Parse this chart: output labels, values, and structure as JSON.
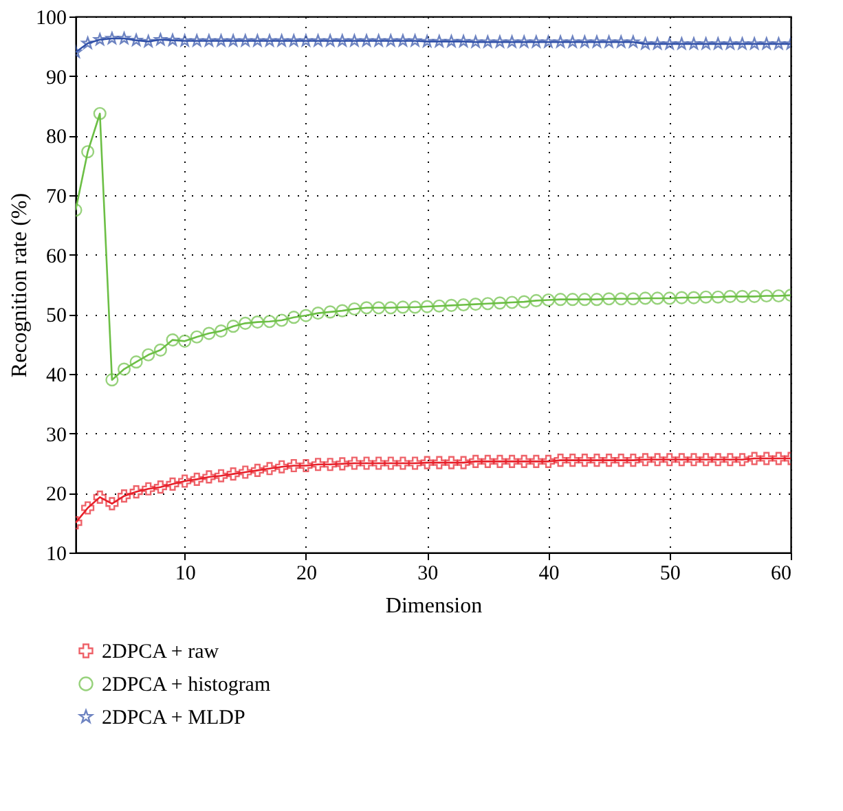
{
  "chart_data": {
    "type": "line",
    "xlabel": "Dimension",
    "ylabel": "Recognition rate (%)",
    "x": [
      1,
      2,
      3,
      4,
      5,
      6,
      7,
      8,
      9,
      10,
      11,
      12,
      13,
      14,
      15,
      16,
      17,
      18,
      19,
      20,
      21,
      22,
      23,
      24,
      25,
      26,
      27,
      28,
      29,
      30,
      31,
      32,
      33,
      34,
      35,
      36,
      37,
      38,
      39,
      40,
      41,
      42,
      43,
      44,
      45,
      46,
      47,
      48,
      49,
      50,
      51,
      52,
      53,
      54,
      55,
      56,
      57,
      58,
      59,
      60
    ],
    "series": [
      {
        "name": "2DPCA + raw",
        "color": "#e8202a",
        "marker": "cross",
        "values": [
          15,
          17.5,
          19.3,
          18.2,
          19.5,
          20.2,
          20.7,
          21,
          21.5,
          22,
          22.3,
          22.7,
          22.9,
          23.2,
          23.5,
          23.8,
          24.1,
          24.4,
          24.6,
          24.6,
          24.8,
          24.8,
          24.9,
          25,
          25,
          25,
          25,
          25,
          25,
          25.1,
          25.1,
          25.1,
          25.1,
          25.3,
          25.3,
          25.3,
          25.3,
          25.3,
          25.3,
          25.3,
          25.5,
          25.5,
          25.5,
          25.5,
          25.5,
          25.5,
          25.5,
          25.6,
          25.6,
          25.6,
          25.6,
          25.6,
          25.6,
          25.6,
          25.6,
          25.6,
          25.8,
          25.8,
          25.8,
          25.8
        ]
      },
      {
        "name": "2DPCA + histogram",
        "color": "#6cbf45",
        "marker": "circle",
        "values": [
          67.5,
          77.3,
          83.7,
          39,
          40.8,
          42,
          43.2,
          44,
          45.7,
          45.5,
          46.2,
          46.8,
          47.2,
          48,
          48.5,
          48.7,
          48.8,
          49,
          49.5,
          49.8,
          50.2,
          50.4,
          50.6,
          50.9,
          51.1,
          51.1,
          51.1,
          51.2,
          51.2,
          51.3,
          51.4,
          51.5,
          51.6,
          51.7,
          51.8,
          51.9,
          52,
          52.1,
          52.3,
          52.4,
          52.5,
          52.5,
          52.5,
          52.5,
          52.6,
          52.6,
          52.6,
          52.7,
          52.7,
          52.7,
          52.8,
          52.8,
          52.9,
          52.9,
          53,
          53,
          53,
          53.1,
          53.1,
          53.2
        ]
      },
      {
        "name": "2DPCA + MLDP",
        "color": "#3050a8",
        "marker": "star",
        "values": [
          94,
          95.5,
          96.1,
          96.3,
          96.3,
          96,
          95.8,
          96.1,
          96,
          95.9,
          95.9,
          95.9,
          95.9,
          95.9,
          95.9,
          95.9,
          95.9,
          95.9,
          95.9,
          95.9,
          95.9,
          95.9,
          95.9,
          95.9,
          95.9,
          95.9,
          95.9,
          95.9,
          95.9,
          95.8,
          95.8,
          95.8,
          95.8,
          95.7,
          95.7,
          95.7,
          95.7,
          95.7,
          95.7,
          95.7,
          95.7,
          95.7,
          95.7,
          95.7,
          95.7,
          95.7,
          95.7,
          95.4,
          95.4,
          95.4,
          95.4,
          95.4,
          95.4,
          95.4,
          95.4,
          95.4,
          95.4,
          95.4,
          95.4,
          95.4
        ]
      }
    ],
    "xlim": [
      1,
      60
    ],
    "xticks": [
      10,
      20,
      30,
      40,
      50,
      60
    ],
    "ylim": [
      10,
      100
    ],
    "yticks": [
      10,
      20,
      30,
      40,
      50,
      60,
      70,
      80,
      90,
      100
    ],
    "grid": true,
    "legend": "bottom",
    "line_style": "solid"
  }
}
